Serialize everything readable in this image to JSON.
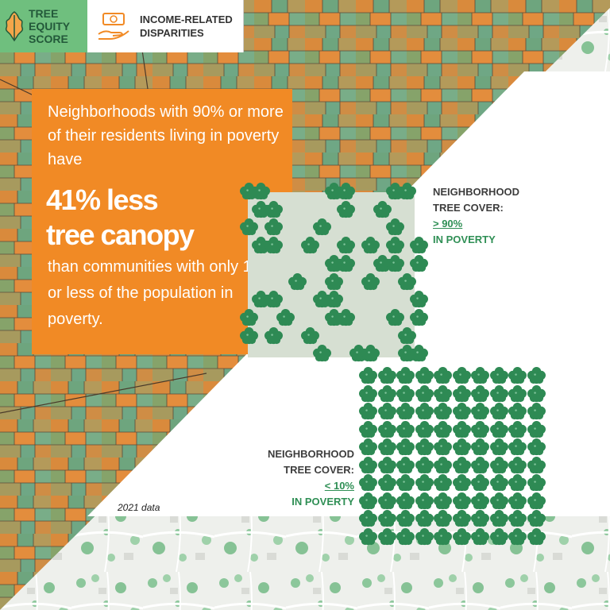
{
  "header": {
    "logo_lines": [
      "TREE",
      "EQUITY",
      "SCORE"
    ],
    "topic_lines": [
      "INCOME-RELATED",
      "DISPARITIES"
    ],
    "topic_icon": "money-hand-icon",
    "logo_icon": "oak-leaf-icon"
  },
  "stat_card": {
    "intro": "Neighborhoods with 90% or more of their residents living in poverty have",
    "big_line1": "41% less",
    "big_line2": "tree canopy",
    "outro": "than communities with only 10% or less of the population in poverty."
  },
  "high_poverty_label": {
    "line1": "NEIGHBORHOOD",
    "line2": "TREE COVER:",
    "line3": "> 90%",
    "line4": "IN POVERTY"
  },
  "low_poverty_label": {
    "line1": "NEIGHBORHOOD",
    "line2": "TREE COVER:",
    "line3": "< 10%",
    "line4": "IN POVERTY"
  },
  "data_year": "2021 data",
  "colors": {
    "orange": "#f18a25",
    "tree_green": "#2e8a54",
    "logo_green": "#6fbf7e",
    "map_green": "#6aa984"
  },
  "tree_pattern_high": [
    "11.....11...11.",
    ".11.....1..1...",
    "1.1...1.....1..",
    ".11..1..1.1.1.1",
    ".......11..11.1",
    "....1..1..1..1.",
    ".11...11......1",
    "1..1...11...1.1",
    "1.1..1.......1.",
    "......1..11..11"
  ]
}
